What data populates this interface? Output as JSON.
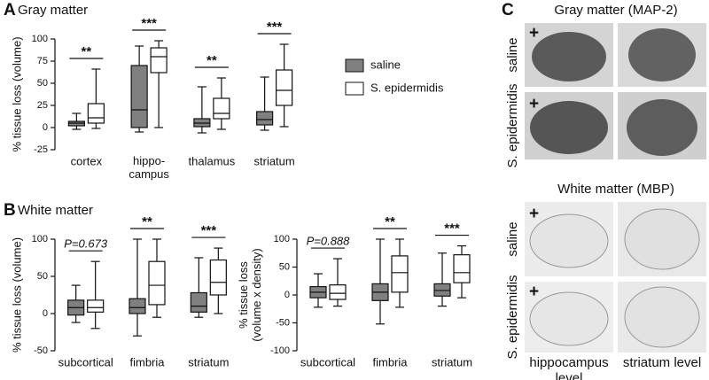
{
  "panels": {
    "letters": [
      "A",
      "B",
      "C"
    ]
  },
  "chart_data": [
    {
      "type": "box",
      "title": "Gray matter",
      "ylabel": "% tissue loss (volume)",
      "categories": [
        "cortex",
        "hippo-\ncampus",
        "thalamus",
        "striatum"
      ],
      "series": [
        {
          "name": "saline",
          "color": "#808080",
          "min": [
            -2,
            -5,
            -6,
            -3
          ],
          "q1": [
            2,
            0,
            1,
            3
          ],
          "median": [
            5,
            20,
            5,
            9
          ],
          "q3": [
            7,
            70,
            10,
            18
          ],
          "max": [
            16,
            92,
            46,
            57
          ]
        },
        {
          "name": "S. epidermidis",
          "color": "#ffffff",
          "min": [
            -1,
            0,
            -2,
            1
          ],
          "q1": [
            5,
            62,
            10,
            25
          ],
          "median": [
            11,
            80,
            16,
            42
          ],
          "q3": [
            27,
            90,
            33,
            65
          ],
          "max": [
            66,
            98,
            56,
            94
          ]
        }
      ],
      "significance": [
        "**",
        "***",
        "**",
        "***"
      ],
      "ylim": [
        -25,
        100
      ],
      "yticks": [
        -25,
        0,
        25,
        50,
        75,
        100
      ],
      "legend": "right"
    },
    {
      "type": "box",
      "title": "White matter",
      "ylabel": "% tissue loss (volume)",
      "categories": [
        "subcortical",
        "fimbria",
        "striatum"
      ],
      "series": [
        {
          "name": "saline",
          "color": "#808080",
          "min": [
            -12,
            -30,
            -5
          ],
          "q1": [
            -2,
            0,
            2
          ],
          "median": [
            8,
            8,
            10
          ],
          "q3": [
            18,
            20,
            28
          ],
          "max": [
            38,
            100,
            75
          ]
        },
        {
          "name": "S. epidermidis",
          "color": "#ffffff",
          "min": [
            -20,
            -5,
            0
          ],
          "q1": [
            2,
            12,
            25
          ],
          "median": [
            8,
            38,
            42
          ],
          "q3": [
            18,
            70,
            72
          ],
          "max": [
            70,
            100,
            88
          ]
        }
      ],
      "significance": [
        "P=0.673",
        "**",
        "***"
      ],
      "ylim": [
        -50,
        100
      ],
      "yticks": [
        -50,
        0,
        50,
        100
      ]
    },
    {
      "type": "box",
      "ylabel": "% tissue loss\n(volume x density)",
      "categories": [
        "subcortical",
        "fimbria",
        "striatum"
      ],
      "series": [
        {
          "name": "saline",
          "color": "#808080",
          "min": [
            -22,
            -52,
            -20
          ],
          "q1": [
            -5,
            -10,
            -2
          ],
          "median": [
            5,
            5,
            8
          ],
          "q3": [
            15,
            20,
            20
          ],
          "max": [
            38,
            100,
            75
          ]
        },
        {
          "name": "S. epidermidis",
          "color": "#ffffff",
          "min": [
            -20,
            -22,
            -5
          ],
          "q1": [
            -8,
            5,
            22
          ],
          "median": [
            3,
            40,
            40
          ],
          "q3": [
            18,
            70,
            72
          ],
          "max": [
            65,
            100,
            88
          ]
        }
      ],
      "significance": [
        "P=0.888",
        "**",
        "***"
      ],
      "ylim": [
        -100,
        100
      ],
      "yticks": [
        -100,
        -50,
        0,
        50,
        100
      ]
    }
  ],
  "panel_c": {
    "gray_title": "Gray matter (MAP-2)",
    "white_title": "White matter (MBP)",
    "rows": [
      "saline",
      "S. epidermidis"
    ],
    "columns": [
      "hippocampus\nlevel",
      "striatum level"
    ],
    "marker": "+"
  }
}
